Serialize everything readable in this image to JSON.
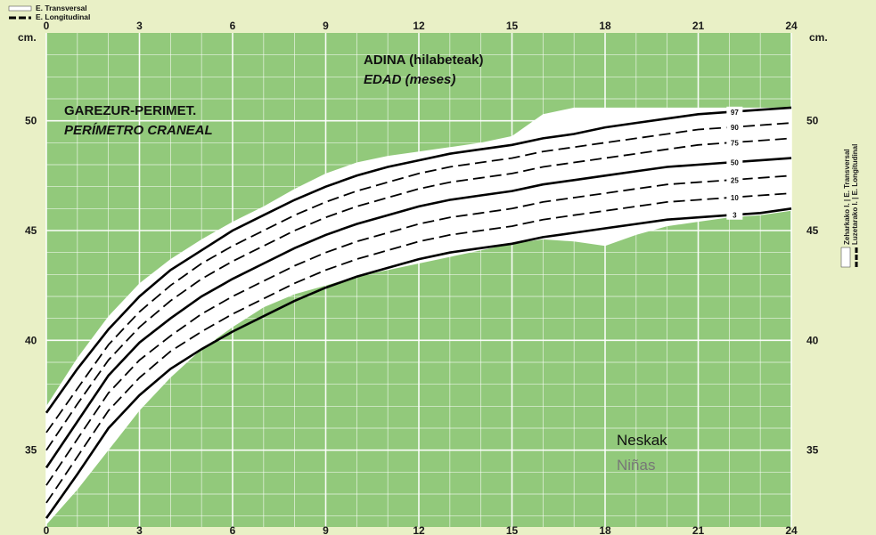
{
  "legend": {
    "transversal": "E. Transversal",
    "longitudinal": "E. Longitudinal"
  },
  "side_labels": {
    "transversal": "Zeharkako I. | E. Transversal",
    "longitudinal": "Luzetarako I. | E. Longitudinal"
  },
  "sex": {
    "eu": "Neskak",
    "es": "Niñas"
  },
  "colors": {
    "plot_bg": "#92c97b",
    "band": "#ffffff",
    "grid": "#ffffff",
    "frame_bg": "#e9f0c6",
    "line": "#000000"
  },
  "chart_data": {
    "type": "line",
    "title_eu": "GAREZUR-PERIMET.",
    "title_es": "PERÍMETRO CRANEAL",
    "xlabel_eu": "ADINA (hilabeteak)",
    "xlabel_es": "EDAD (meses)",
    "yunit": "cm.",
    "xlim": [
      0,
      24
    ],
    "ylim": [
      31.5,
      54
    ],
    "xticks": [
      "0",
      "3",
      "6",
      "9",
      "12",
      "15",
      "18",
      "21",
      "24"
    ],
    "yticks": [
      "35",
      "40",
      "45",
      "50"
    ],
    "grid": true,
    "x": [
      0,
      1,
      2,
      3,
      4,
      5,
      6,
      7,
      8,
      9,
      10,
      11,
      12,
      13,
      14,
      15,
      16,
      17,
      18,
      19,
      20,
      21,
      22,
      23,
      24
    ],
    "series": [
      {
        "name": "97",
        "style": "solid",
        "values": [
          36.7,
          38.7,
          40.5,
          42.0,
          43.2,
          44.1,
          45.0,
          45.7,
          46.4,
          47.0,
          47.5,
          47.9,
          48.2,
          48.5,
          48.7,
          48.9,
          49.2,
          49.4,
          49.7,
          49.9,
          50.1,
          50.3,
          50.4,
          50.5,
          50.6
        ]
      },
      {
        "name": "90",
        "style": "dashed",
        "values": [
          35.8,
          37.8,
          39.8,
          41.3,
          42.5,
          43.5,
          44.3,
          45.0,
          45.7,
          46.3,
          46.8,
          47.2,
          47.6,
          47.9,
          48.1,
          48.3,
          48.6,
          48.8,
          49.0,
          49.2,
          49.4,
          49.6,
          49.7,
          49.8,
          49.9
        ]
      },
      {
        "name": "75",
        "style": "dashed",
        "values": [
          35.0,
          37.1,
          39.1,
          40.6,
          41.8,
          42.8,
          43.6,
          44.3,
          45.0,
          45.6,
          46.1,
          46.5,
          46.9,
          47.2,
          47.4,
          47.6,
          47.9,
          48.1,
          48.3,
          48.5,
          48.7,
          48.9,
          49.0,
          49.1,
          49.2
        ]
      },
      {
        "name": "50",
        "style": "solid",
        "values": [
          34.2,
          36.3,
          38.4,
          39.9,
          41.0,
          42.0,
          42.8,
          43.5,
          44.2,
          44.8,
          45.3,
          45.7,
          46.1,
          46.4,
          46.6,
          46.8,
          47.1,
          47.3,
          47.5,
          47.7,
          47.9,
          48.0,
          48.1,
          48.2,
          48.3
        ]
      },
      {
        "name": "25",
        "style": "dashed",
        "values": [
          33.4,
          35.5,
          37.6,
          39.1,
          40.2,
          41.2,
          42.0,
          42.7,
          43.4,
          44.0,
          44.5,
          44.9,
          45.3,
          45.6,
          45.8,
          46.0,
          46.3,
          46.5,
          46.7,
          46.9,
          47.1,
          47.2,
          47.3,
          47.4,
          47.5
        ]
      },
      {
        "name": "10",
        "style": "dashed",
        "values": [
          32.6,
          34.7,
          36.8,
          38.3,
          39.5,
          40.4,
          41.2,
          41.9,
          42.6,
          43.2,
          43.7,
          44.1,
          44.5,
          44.8,
          45.0,
          45.2,
          45.5,
          45.7,
          45.9,
          46.1,
          46.3,
          46.4,
          46.5,
          46.6,
          46.7
        ]
      },
      {
        "name": "3",
        "style": "solid",
        "values": [
          31.9,
          33.9,
          36.0,
          37.5,
          38.7,
          39.6,
          40.4,
          41.1,
          41.8,
          42.4,
          42.9,
          43.3,
          43.7,
          44.0,
          44.2,
          44.4,
          44.7,
          44.9,
          45.1,
          45.3,
          45.5,
          45.6,
          45.7,
          45.8,
          46.0
        ]
      }
    ],
    "band": {
      "x": [
        0,
        1,
        2,
        3,
        4,
        5,
        6,
        7,
        8,
        9,
        10,
        11,
        12,
        13,
        14,
        15,
        16,
        17,
        18,
        19,
        20,
        21,
        22,
        23,
        24
      ],
      "upper": [
        37.0,
        39.2,
        41.1,
        42.6,
        43.7,
        44.6,
        45.4,
        46.1,
        46.9,
        47.6,
        48.1,
        48.4,
        48.6,
        48.8,
        49.0,
        49.3,
        50.3,
        50.6,
        50.6,
        50.6,
        50.6,
        50.6,
        50.6,
        50.6,
        50.6
      ],
      "lower": [
        31.6,
        33.2,
        35.0,
        36.8,
        38.3,
        39.6,
        40.6,
        41.5,
        42.1,
        42.5,
        42.9,
        43.2,
        43.5,
        43.8,
        44.1,
        44.4,
        44.6,
        44.5,
        44.3,
        44.8,
        45.2,
        45.4,
        45.6,
        45.7,
        45.9
      ]
    }
  }
}
